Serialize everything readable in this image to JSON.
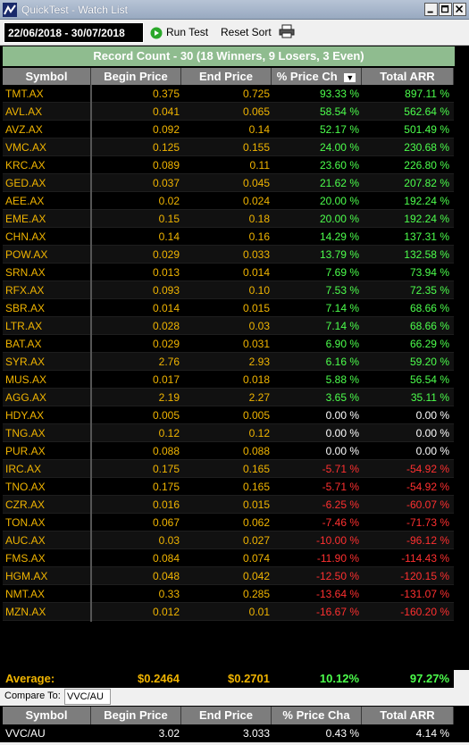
{
  "window": {
    "title": "QuickTest - Watch List"
  },
  "toolbar": {
    "date_range": "22/06/2018 - 30/07/2018",
    "run_test": "Run Test",
    "reset_sort": "Reset Sort",
    "print_icon": "printer-icon"
  },
  "record_count": "Record Count - 30 (18 Winners, 9 Losers, 3 Even)",
  "columns": [
    "Symbol",
    "Begin Price",
    "End Price",
    "% Price Ch",
    "Total ARR"
  ],
  "sort_indicator": "▼",
  "rows": [
    {
      "symbol": "TMT.AX",
      "begin": "0.375",
      "end": "0.725",
      "pct": "93.33 %",
      "arr": "897.11 %",
      "trend": "pos"
    },
    {
      "symbol": "AVL.AX",
      "begin": "0.041",
      "end": "0.065",
      "pct": "58.54 %",
      "arr": "562.64 %",
      "trend": "pos"
    },
    {
      "symbol": "AVZ.AX",
      "begin": "0.092",
      "end": "0.14",
      "pct": "52.17 %",
      "arr": "501.49 %",
      "trend": "pos"
    },
    {
      "symbol": "VMC.AX",
      "begin": "0.125",
      "end": "0.155",
      "pct": "24.00 %",
      "arr": "230.68 %",
      "trend": "pos"
    },
    {
      "symbol": "KRC.AX",
      "begin": "0.089",
      "end": "0.11",
      "pct": "23.60 %",
      "arr": "226.80 %",
      "trend": "pos"
    },
    {
      "symbol": "GED.AX",
      "begin": "0.037",
      "end": "0.045",
      "pct": "21.62 %",
      "arr": "207.82 %",
      "trend": "pos"
    },
    {
      "symbol": "AEE.AX",
      "begin": "0.02",
      "end": "0.024",
      "pct": "20.00 %",
      "arr": "192.24 %",
      "trend": "pos"
    },
    {
      "symbol": "EME.AX",
      "begin": "0.15",
      "end": "0.18",
      "pct": "20.00 %",
      "arr": "192.24 %",
      "trend": "pos"
    },
    {
      "symbol": "CHN.AX",
      "begin": "0.14",
      "end": "0.16",
      "pct": "14.29 %",
      "arr": "137.31 %",
      "trend": "pos"
    },
    {
      "symbol": "POW.AX",
      "begin": "0.029",
      "end": "0.033",
      "pct": "13.79 %",
      "arr": "132.58 %",
      "trend": "pos"
    },
    {
      "symbol": "SRN.AX",
      "begin": "0.013",
      "end": "0.014",
      "pct": "7.69 %",
      "arr": "73.94 %",
      "trend": "pos"
    },
    {
      "symbol": "RFX.AX",
      "begin": "0.093",
      "end": "0.10",
      "pct": "7.53 %",
      "arr": "72.35 %",
      "trend": "pos"
    },
    {
      "symbol": "SBR.AX",
      "begin": "0.014",
      "end": "0.015",
      "pct": "7.14 %",
      "arr": "68.66 %",
      "trend": "pos"
    },
    {
      "symbol": "LTR.AX",
      "begin": "0.028",
      "end": "0.03",
      "pct": "7.14 %",
      "arr": "68.66 %",
      "trend": "pos"
    },
    {
      "symbol": "BAT.AX",
      "begin": "0.029",
      "end": "0.031",
      "pct": "6.90 %",
      "arr": "66.29 %",
      "trend": "pos"
    },
    {
      "symbol": "SYR.AX",
      "begin": "2.76",
      "end": "2.93",
      "pct": "6.16 %",
      "arr": "59.20 %",
      "trend": "pos"
    },
    {
      "symbol": "MUS.AX",
      "begin": "0.017",
      "end": "0.018",
      "pct": "5.88 %",
      "arr": "56.54 %",
      "trend": "pos"
    },
    {
      "symbol": "AGG.AX",
      "begin": "2.19",
      "end": "2.27",
      "pct": "3.65 %",
      "arr": "35.11 %",
      "trend": "pos"
    },
    {
      "symbol": "HDY.AX",
      "begin": "0.005",
      "end": "0.005",
      "pct": "0.00 %",
      "arr": "0.00 %",
      "trend": "neu"
    },
    {
      "symbol": "TNG.AX",
      "begin": "0.12",
      "end": "0.12",
      "pct": "0.00 %",
      "arr": "0.00 %",
      "trend": "neu"
    },
    {
      "symbol": "PUR.AX",
      "begin": "0.088",
      "end": "0.088",
      "pct": "0.00 %",
      "arr": "0.00 %",
      "trend": "neu"
    },
    {
      "symbol": "IRC.AX",
      "begin": "0.175",
      "end": "0.165",
      "pct": "-5.71 %",
      "arr": "-54.92 %",
      "trend": "neg"
    },
    {
      "symbol": "TNO.AX",
      "begin": "0.175",
      "end": "0.165",
      "pct": "-5.71 %",
      "arr": "-54.92 %",
      "trend": "neg"
    },
    {
      "symbol": "CZR.AX",
      "begin": "0.016",
      "end": "0.015",
      "pct": "-6.25 %",
      "arr": "-60.07 %",
      "trend": "neg"
    },
    {
      "symbol": "TON.AX",
      "begin": "0.067",
      "end": "0.062",
      "pct": "-7.46 %",
      "arr": "-71.73 %",
      "trend": "neg"
    },
    {
      "symbol": "AUC.AX",
      "begin": "0.03",
      "end": "0.027",
      "pct": "-10.00 %",
      "arr": "-96.12 %",
      "trend": "neg"
    },
    {
      "symbol": "FMS.AX",
      "begin": "0.084",
      "end": "0.074",
      "pct": "-11.90 %",
      "arr": "-114.43 %",
      "trend": "neg"
    },
    {
      "symbol": "HGM.AX",
      "begin": "0.048",
      "end": "0.042",
      "pct": "-12.50 %",
      "arr": "-120.15 %",
      "trend": "neg"
    },
    {
      "symbol": "NMT.AX",
      "begin": "0.33",
      "end": "0.285",
      "pct": "-13.64 %",
      "arr": "-131.07 %",
      "trend": "neg"
    },
    {
      "symbol": "MZN.AX",
      "begin": "0.012",
      "end": "0.01",
      "pct": "-16.67 %",
      "arr": "-160.20 %",
      "trend": "neg"
    }
  ],
  "average": {
    "label": "Average:",
    "begin": "$0.2464",
    "end": "$0.2701",
    "pct": "10.12%",
    "arr": "97.27%"
  },
  "compare": {
    "label": "Compare To:",
    "value": "VVC/AU",
    "columns": [
      "Symbol",
      "Begin Price",
      "End Price",
      "% Price Cha",
      "Total ARR"
    ],
    "row": {
      "symbol": "VVC/AU",
      "begin": "3.02",
      "end": "3.033",
      "pct": "0.43 %",
      "arr": "4.14 %",
      "trend": "pos"
    }
  },
  "colors": {
    "title_bar": "#a8b7cc",
    "record_bar": "#8fbc8f",
    "header": "#7d7d7d",
    "gold_text": "#f0b400",
    "positive": "#4cff4c",
    "negative": "#ff3030"
  }
}
